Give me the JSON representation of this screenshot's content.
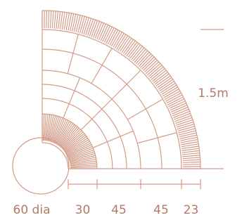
{
  "dimensions": {
    "height": "1.5m",
    "center": "60 dia",
    "segments": [
      "30",
      "45",
      "45",
      "23"
    ]
  }
}
